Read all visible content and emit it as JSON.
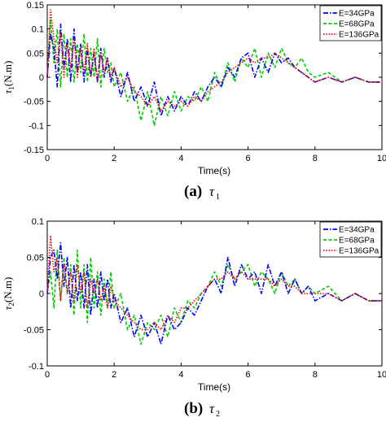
{
  "chart_data": [
    {
      "type": "line",
      "caption_letter": "(a)",
      "caption_symbol": "τ",
      "caption_subscript": "1",
      "xlabel": "Time(s)",
      "ylabel_symbol": "τ",
      "ylabel_subscript": "1",
      "ylabel_unit": "(N.m)",
      "xlim": [
        0,
        10
      ],
      "ylim": [
        -0.15,
        0.15
      ],
      "xticks": [
        "0",
        "2",
        "4",
        "6",
        "8",
        "10"
      ],
      "yticks": [
        "-0.15",
        "-0.1",
        "-0.05",
        "0",
        "0.05",
        "0.1",
        "0.15"
      ],
      "ytick_values": [
        -0.15,
        -0.1,
        -0.05,
        0,
        0.05,
        0.1,
        0.15
      ],
      "legend_position": "top-right",
      "series": [
        {
          "name": "E=34GPa",
          "color": "#0000ff",
          "style": "dashdot",
          "x": [
            0,
            0.1,
            0.2,
            0.3,
            0.4,
            0.5,
            0.6,
            0.7,
            0.8,
            0.9,
            1.0,
            1.1,
            1.2,
            1.3,
            1.4,
            1.5,
            1.6,
            1.7,
            1.8,
            1.9,
            2.0,
            2.2,
            2.4,
            2.6,
            2.8,
            3.0,
            3.2,
            3.4,
            3.6,
            3.8,
            4.0,
            4.2,
            4.4,
            4.6,
            4.8,
            5.0,
            5.2,
            5.4,
            5.6,
            5.8,
            6.0,
            6.2,
            6.4,
            6.6,
            6.8,
            7.0,
            7.2,
            7.4,
            7.6,
            7.8,
            8.0,
            8.4,
            8.8,
            9.2,
            9.6,
            10.0
          ],
          "y": [
            0,
            0.09,
            0.06,
            -0.02,
            0.11,
            0.02,
            0.08,
            -0.01,
            0.1,
            0.01,
            0.07,
            -0.01,
            0.06,
            0.0,
            0.05,
            -0.01,
            0.06,
            0.0,
            0.04,
            -0.01,
            0.02,
            -0.04,
            0.01,
            -0.05,
            -0.02,
            -0.06,
            -0.01,
            -0.08,
            -0.04,
            -0.07,
            -0.04,
            -0.06,
            -0.03,
            -0.05,
            -0.02,
            0.0,
            -0.02,
            0.02,
            0.0,
            0.04,
            0.05,
            0.0,
            0.04,
            0.01,
            0.05,
            0.03,
            0.04,
            0.02,
            0.01,
            0.0,
            -0.01,
            0.0,
            -0.01,
            0.0,
            -0.01,
            -0.01
          ]
        },
        {
          "name": "E=68GPa",
          "color": "#00cc00",
          "style": "dashed",
          "x": [
            0,
            0.1,
            0.2,
            0.3,
            0.4,
            0.5,
            0.6,
            0.7,
            0.8,
            0.9,
            1.0,
            1.1,
            1.2,
            1.3,
            1.4,
            1.5,
            1.6,
            1.7,
            1.8,
            1.9,
            2.0,
            2.2,
            2.4,
            2.6,
            2.8,
            3.0,
            3.2,
            3.4,
            3.6,
            3.8,
            4.0,
            4.2,
            4.4,
            4.6,
            4.8,
            5.0,
            5.2,
            5.4,
            5.6,
            5.8,
            6.0,
            6.2,
            6.4,
            6.6,
            6.8,
            7.0,
            7.2,
            7.4,
            7.6,
            7.8,
            8.0,
            8.4,
            8.8,
            9.2,
            9.6,
            10.0
          ],
          "y": [
            0,
            0.12,
            0.03,
            0.1,
            -0.02,
            0.09,
            0.0,
            0.08,
            -0.01,
            0.07,
            0.01,
            0.09,
            -0.01,
            0.06,
            0.0,
            0.08,
            -0.02,
            0.06,
            0.01,
            0.03,
            -0.02,
            0.01,
            -0.05,
            -0.02,
            -0.09,
            -0.03,
            -0.1,
            -0.04,
            -0.08,
            -0.03,
            -0.07,
            -0.04,
            -0.05,
            -0.02,
            -0.05,
            0.01,
            -0.02,
            0.03,
            -0.01,
            0.04,
            0.02,
            0.06,
            0.0,
            0.05,
            0.02,
            0.06,
            0.03,
            0.02,
            0.04,
            0.01,
            0.0,
            0.01,
            -0.01,
            0.0,
            -0.01,
            -0.01
          ]
        },
        {
          "name": "E=136GPa",
          "color": "#ff0000",
          "style": "dotted",
          "x": [
            0,
            0.1,
            0.2,
            0.3,
            0.4,
            0.5,
            0.6,
            0.7,
            0.8,
            0.9,
            1.0,
            1.1,
            1.2,
            1.3,
            1.4,
            1.5,
            1.6,
            1.7,
            1.8,
            1.9,
            2.0,
            2.2,
            2.4,
            2.6,
            2.8,
            3.0,
            3.2,
            3.4,
            3.6,
            3.8,
            4.0,
            4.2,
            4.4,
            4.6,
            4.8,
            5.0,
            5.2,
            5.4,
            5.6,
            5.8,
            6.0,
            6.2,
            6.4,
            6.6,
            6.8,
            7.0,
            7.2,
            7.4,
            7.6,
            7.8,
            8.0,
            8.4,
            8.8,
            9.2,
            9.6,
            10.0
          ],
          "y": [
            0,
            0.14,
            0.08,
            0.03,
            0.09,
            0.0,
            0.07,
            0.02,
            0.08,
            0.0,
            0.06,
            0.01,
            0.07,
            0.0,
            0.06,
            -0.01,
            0.05,
            0.01,
            0.04,
            0.0,
            0.02,
            -0.02,
            0.0,
            -0.03,
            -0.04,
            -0.06,
            -0.04,
            -0.07,
            -0.05,
            -0.06,
            -0.05,
            -0.06,
            -0.04,
            -0.05,
            -0.03,
            -0.02,
            -0.01,
            0.01,
            0.02,
            0.03,
            0.04,
            0.03,
            0.04,
            0.04,
            0.05,
            0.04,
            0.03,
            0.02,
            0.01,
            0.0,
            -0.01,
            0.0,
            -0.01,
            0.0,
            -0.01,
            -0.01
          ]
        }
      ]
    },
    {
      "type": "line",
      "caption_letter": "(b)",
      "caption_symbol": "τ",
      "caption_subscript": "2",
      "xlabel": "Time(s)",
      "ylabel_symbol": "τ",
      "ylabel_subscript": "2",
      "ylabel_unit": "(N.m)",
      "xlim": [
        0,
        10
      ],
      "ylim": [
        -0.1,
        0.1
      ],
      "xticks": [
        "0",
        "2",
        "4",
        "6",
        "8",
        "10"
      ],
      "yticks": [
        "-0.1",
        "-0.05",
        "0",
        "0.05",
        "0.1"
      ],
      "ytick_values": [
        -0.1,
        -0.05,
        0,
        0.05,
        0.1
      ],
      "legend_position": "top-right",
      "series": [
        {
          "name": "E=34GPa",
          "color": "#0000ff",
          "style": "dashdot",
          "x": [
            0,
            0.1,
            0.2,
            0.3,
            0.4,
            0.5,
            0.6,
            0.7,
            0.8,
            0.9,
            1.0,
            1.1,
            1.2,
            1.3,
            1.4,
            1.5,
            1.6,
            1.7,
            1.8,
            1.9,
            2.0,
            2.2,
            2.4,
            2.6,
            2.8,
            3.0,
            3.2,
            3.4,
            3.6,
            3.8,
            4.0,
            4.2,
            4.4,
            4.6,
            4.8,
            5.0,
            5.2,
            5.4,
            5.6,
            5.8,
            6.0,
            6.2,
            6.4,
            6.6,
            6.8,
            7.0,
            7.2,
            7.4,
            7.6,
            7.8,
            8.0,
            8.4,
            8.8,
            9.2,
            9.6,
            10.0
          ],
          "y": [
            0,
            0.05,
            0.06,
            0.02,
            0.07,
            0.01,
            0.05,
            -0.02,
            0.04,
            -0.01,
            0.03,
            -0.02,
            0.04,
            -0.03,
            0.02,
            -0.02,
            0.03,
            -0.01,
            0.02,
            -0.02,
            0.0,
            -0.04,
            -0.02,
            -0.06,
            -0.03,
            -0.06,
            -0.04,
            -0.07,
            -0.03,
            -0.05,
            -0.04,
            -0.02,
            -0.03,
            -0.01,
            0.01,
            0.02,
            0.0,
            0.05,
            0.01,
            0.04,
            0.02,
            0.03,
            0.0,
            0.04,
            0.01,
            0.03,
            0.0,
            0.02,
            0.0,
            0.01,
            -0.01,
            0.0,
            -0.01,
            0.0,
            -0.01,
            -0.01
          ]
        },
        {
          "name": "E=68GPa",
          "color": "#00cc00",
          "style": "dashed",
          "x": [
            0,
            0.1,
            0.2,
            0.3,
            0.4,
            0.5,
            0.6,
            0.7,
            0.8,
            0.9,
            1.0,
            1.1,
            1.2,
            1.3,
            1.4,
            1.5,
            1.6,
            1.7,
            1.8,
            1.9,
            2.0,
            2.2,
            2.4,
            2.6,
            2.8,
            3.0,
            3.2,
            3.4,
            3.6,
            3.8,
            4.0,
            4.2,
            4.4,
            4.6,
            4.8,
            5.0,
            5.2,
            5.4,
            5.6,
            5.8,
            6.0,
            6.2,
            6.4,
            6.6,
            6.8,
            7.0,
            7.2,
            7.4,
            7.6,
            7.8,
            8.0,
            8.4,
            8.8,
            9.2,
            9.6,
            10.0
          ],
          "y": [
            0,
            0.03,
            -0.02,
            0.06,
            -0.01,
            0.05,
            0.0,
            0.04,
            -0.03,
            0.06,
            -0.02,
            0.04,
            -0.04,
            0.05,
            -0.02,
            0.03,
            -0.03,
            0.02,
            -0.02,
            0.03,
            -0.02,
            0.0,
            -0.05,
            -0.03,
            -0.07,
            -0.04,
            -0.05,
            -0.03,
            -0.06,
            -0.02,
            -0.04,
            -0.01,
            -0.02,
            0.0,
            0.01,
            0.03,
            0.01,
            0.04,
            0.02,
            0.03,
            0.04,
            0.01,
            0.03,
            0.02,
            0.0,
            0.03,
            0.01,
            0.02,
            0.0,
            0.01,
            0.0,
            0.01,
            -0.01,
            0.0,
            -0.01,
            -0.01
          ]
        },
        {
          "name": "E=136GPa",
          "color": "#ff0000",
          "style": "dotted",
          "x": [
            0,
            0.1,
            0.2,
            0.3,
            0.4,
            0.5,
            0.6,
            0.7,
            0.8,
            0.9,
            1.0,
            1.1,
            1.2,
            1.3,
            1.4,
            1.5,
            1.6,
            1.7,
            1.8,
            1.9,
            2.0,
            2.2,
            2.4,
            2.6,
            2.8,
            3.0,
            3.2,
            3.4,
            3.6,
            3.8,
            4.0,
            4.2,
            4.4,
            4.6,
            4.8,
            5.0,
            5.2,
            5.4,
            5.6,
            5.8,
            6.0,
            6.2,
            6.4,
            6.6,
            6.8,
            7.0,
            7.2,
            7.4,
            7.6,
            7.8,
            8.0,
            8.4,
            8.8,
            9.2,
            9.6,
            10.0
          ],
          "y": [
            0,
            0.08,
            0.03,
            0.05,
            -0.01,
            0.04,
            0.0,
            0.03,
            -0.01,
            0.04,
            0.0,
            0.03,
            -0.02,
            0.02,
            0.0,
            0.02,
            -0.01,
            0.01,
            -0.02,
            0.01,
            -0.01,
            -0.02,
            -0.03,
            -0.04,
            -0.05,
            -0.05,
            -0.04,
            -0.05,
            -0.03,
            -0.04,
            -0.02,
            -0.02,
            -0.01,
            0.0,
            0.01,
            0.02,
            0.02,
            0.03,
            0.02,
            0.03,
            0.02,
            0.02,
            0.02,
            0.02,
            0.01,
            0.02,
            0.01,
            0.01,
            0.0,
            0.0,
            0.0,
            0.0,
            -0.01,
            0.0,
            -0.01,
            -0.01
          ]
        }
      ]
    }
  ]
}
